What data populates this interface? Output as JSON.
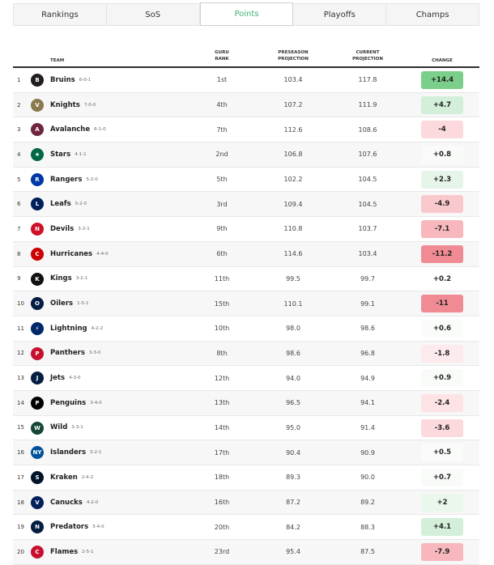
{
  "tabs": [
    {
      "label": "Rankings",
      "active": false
    },
    {
      "label": "SoS",
      "active": false
    },
    {
      "label": "Points",
      "active": true
    },
    {
      "label": "Playoffs",
      "active": false
    },
    {
      "label": "Champs",
      "active": false
    }
  ],
  "columns": {
    "team": "TEAM",
    "guru": "GURU RANK",
    "pre": "PRESEASON PROJECTION",
    "cur": "CURRENT PROJECTION",
    "change": "CHANGE"
  },
  "teams": [
    {
      "rank": "1",
      "name": "Bruins",
      "record": "6-0-1",
      "guru": "1st",
      "pre": "103.4",
      "cur": "117.8",
      "change": "+14.4",
      "change_color": "#7bcf8a",
      "logo_color": "#231f20",
      "logo_text": "B"
    },
    {
      "rank": "2",
      "name": "Knights",
      "record": "7-0-0",
      "guru": "4th",
      "pre": "107.2",
      "cur": "111.9",
      "change": "+4.7",
      "change_color": "#d3efd9",
      "logo_color": "#8a7a4f",
      "logo_text": "V"
    },
    {
      "rank": "3",
      "name": "Avalanche",
      "record": "6-1-0",
      "guru": "7th",
      "pre": "112.6",
      "cur": "108.6",
      "change": "-4",
      "change_color": "#fbd9dc",
      "logo_color": "#6f263d",
      "logo_text": "A"
    },
    {
      "rank": "4",
      "name": "Stars",
      "record": "4-1-1",
      "guru": "2nd",
      "pre": "106.8",
      "cur": "107.6",
      "change": "+0.8",
      "change_color": "#f9fbf9",
      "logo_color": "#006847",
      "logo_text": "★"
    },
    {
      "rank": "5",
      "name": "Rangers",
      "record": "5-2-0",
      "guru": "5th",
      "pre": "102.2",
      "cur": "104.5",
      "change": "+2.3",
      "change_color": "#e6f5e9",
      "logo_color": "#0038a8",
      "logo_text": "R"
    },
    {
      "rank": "6",
      "name": "Leafs",
      "record": "5-2-0",
      "guru": "3rd",
      "pre": "109.4",
      "cur": "104.5",
      "change": "-4.9",
      "change_color": "#f9c8cc",
      "logo_color": "#00205b",
      "logo_text": "L"
    },
    {
      "rank": "7",
      "name": "Devils",
      "record": "3-2-1",
      "guru": "9th",
      "pre": "110.8",
      "cur": "103.7",
      "change": "-7.1",
      "change_color": "#f7b7bd",
      "logo_color": "#ce1126",
      "logo_text": "N"
    },
    {
      "rank": "8",
      "name": "Hurricanes",
      "record": "4-4-0",
      "guru": "6th",
      "pre": "114.6",
      "cur": "103.4",
      "change": "-11.2",
      "change_color": "#f08b93",
      "logo_color": "#cc0000",
      "logo_text": "C"
    },
    {
      "rank": "9",
      "name": "Kings",
      "record": "3-2-1",
      "guru": "11th",
      "pre": "99.5",
      "cur": "99.7",
      "change": "+0.2",
      "change_color": "#ffffff",
      "logo_color": "#111111",
      "logo_text": "K"
    },
    {
      "rank": "10",
      "name": "Oilers",
      "record": "1-5-1",
      "guru": "15th",
      "pre": "110.1",
      "cur": "99.1",
      "change": "-11",
      "change_color": "#f08b93",
      "logo_color": "#041e42",
      "logo_text": "O"
    },
    {
      "rank": "11",
      "name": "Lightning",
      "record": "4-2-2",
      "guru": "10th",
      "pre": "98.0",
      "cur": "98.6",
      "change": "+0.6",
      "change_color": "#fafcfa",
      "logo_color": "#002868",
      "logo_text": "⚡"
    },
    {
      "rank": "12",
      "name": "Panthers",
      "record": "3-3-0",
      "guru": "8th",
      "pre": "98.6",
      "cur": "96.8",
      "change": "-1.8",
      "change_color": "#fdeaec",
      "logo_color": "#c8102e",
      "logo_text": "P"
    },
    {
      "rank": "13",
      "name": "Jets",
      "record": "4-3-0",
      "guru": "12th",
      "pre": "94.0",
      "cur": "94.9",
      "change": "+0.9",
      "change_color": "#f9fbf9",
      "logo_color": "#041e42",
      "logo_text": "J"
    },
    {
      "rank": "14",
      "name": "Penguins",
      "record": "3-4-0",
      "guru": "13th",
      "pre": "96.5",
      "cur": "94.1",
      "change": "-2.4",
      "change_color": "#fde3e5",
      "logo_color": "#000000",
      "logo_text": "P"
    },
    {
      "rank": "15",
      "name": "Wild",
      "record": "3-3-1",
      "guru": "14th",
      "pre": "95.0",
      "cur": "91.4",
      "change": "-3.6",
      "change_color": "#fbd9dc",
      "logo_color": "#154734",
      "logo_text": "W"
    },
    {
      "rank": "16",
      "name": "Islanders",
      "record": "3-2-1",
      "guru": "17th",
      "pre": "90.4",
      "cur": "90.9",
      "change": "+0.5",
      "change_color": "#fafcfa",
      "logo_color": "#00539b",
      "logo_text": "NY"
    },
    {
      "rank": "17",
      "name": "Kraken",
      "record": "2-4-2",
      "guru": "18th",
      "pre": "89.3",
      "cur": "90.0",
      "change": "+0.7",
      "change_color": "#f9fbf9",
      "logo_color": "#001628",
      "logo_text": "S"
    },
    {
      "rank": "18",
      "name": "Canucks",
      "record": "4-2-0",
      "guru": "16th",
      "pre": "87.2",
      "cur": "89.2",
      "change": "+2",
      "change_color": "#eaf7ec",
      "logo_color": "#00205b",
      "logo_text": "V"
    },
    {
      "rank": "19",
      "name": "Predators",
      "record": "3-4-0",
      "guru": "20th",
      "pre": "84.2",
      "cur": "88.3",
      "change": "+4.1",
      "change_color": "#d3efd9",
      "logo_color": "#041e42",
      "logo_text": "N"
    },
    {
      "rank": "20",
      "name": "Flames",
      "record": "2-5-1",
      "guru": "23rd",
      "pre": "95.4",
      "cur": "87.5",
      "change": "-7.9",
      "change_color": "#f7b7bd",
      "logo_color": "#c8102e",
      "logo_text": "C"
    }
  ]
}
